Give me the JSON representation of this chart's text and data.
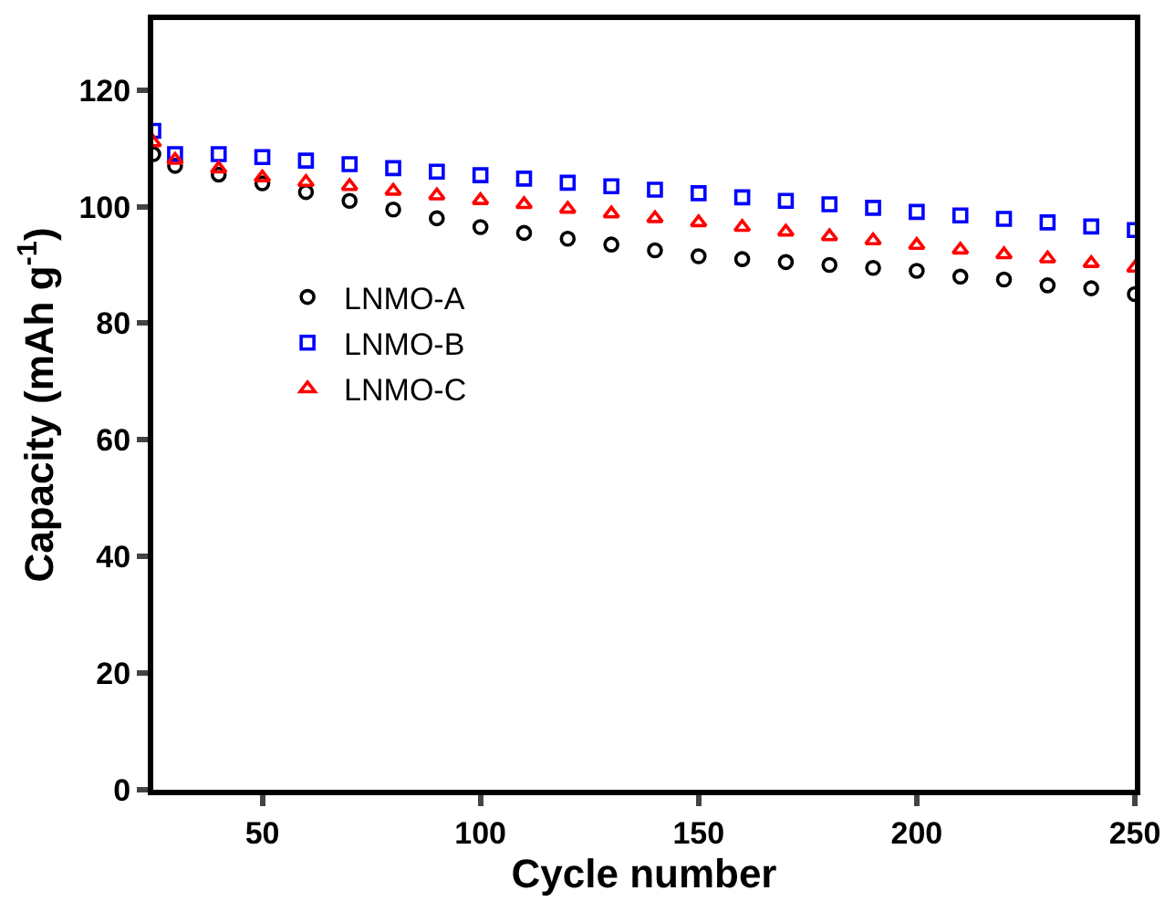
{
  "chart_data": {
    "type": "scatter",
    "xlabel": "Cycle number",
    "ylabel": "Capacity (mAh g$^{-1}$)",
    "x": [
      25,
      30,
      40,
      50,
      60,
      70,
      80,
      90,
      100,
      110,
      120,
      130,
      140,
      150,
      160,
      170,
      180,
      190,
      200,
      210,
      220,
      230,
      240,
      250
    ],
    "xlim": [
      25,
      250
    ],
    "xticks": [
      50,
      100,
      150,
      200,
      250
    ],
    "ylim": [
      0,
      132
    ],
    "yticks": [
      0,
      20,
      40,
      60,
      80,
      100,
      120
    ],
    "legend": "left",
    "series": [
      {
        "name": "LNMO-A",
        "color": "#000000",
        "marker": "circle",
        "values": [
          109,
          107,
          105.5,
          104,
          102.5,
          101,
          99.5,
          98,
          96.5,
          95.5,
          94.5,
          93.5,
          92.5,
          91.5,
          91,
          90.5,
          90,
          89.5,
          89,
          88,
          87.5,
          86.5,
          86,
          85
        ]
      },
      {
        "name": "LNMO-B",
        "color": "#0000ff",
        "marker": "square",
        "values": [
          113,
          109,
          109,
          108.5,
          107.9,
          107.3,
          106.6,
          106,
          105.4,
          104.8,
          104.1,
          103.5,
          102.9,
          102.3,
          101.6,
          101,
          100.4,
          99.8,
          99.1,
          98.5,
          97.9,
          97.3,
          96.6,
          96
        ]
      },
      {
        "name": "LNMO-C",
        "color": "#ff0000",
        "marker": "triangle",
        "values": [
          111,
          108,
          106.5,
          105,
          104.2,
          103.5,
          102.7,
          101.9,
          101.1,
          100.4,
          99.6,
          98.8,
          98,
          97.3,
          96.5,
          95.7,
          94.9,
          94.2,
          93.4,
          92.6,
          91.8,
          91.1,
          90.3,
          89.5
        ]
      }
    ]
  }
}
